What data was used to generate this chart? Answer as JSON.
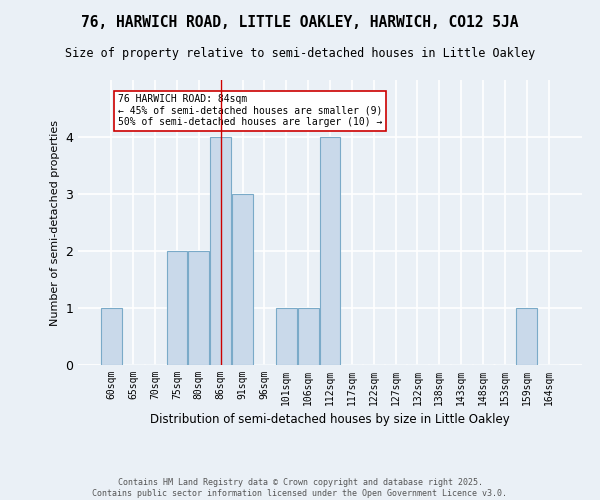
{
  "title": "76, HARWICH ROAD, LITTLE OAKLEY, HARWICH, CO12 5JA",
  "subtitle": "Size of property relative to semi-detached houses in Little Oakley",
  "xlabel": "Distribution of semi-detached houses by size in Little Oakley",
  "ylabel": "Number of semi-detached properties",
  "categories": [
    "60sqm",
    "65sqm",
    "70sqm",
    "75sqm",
    "80sqm",
    "86sqm",
    "91sqm",
    "96sqm",
    "101sqm",
    "106sqm",
    "112sqm",
    "117sqm",
    "122sqm",
    "127sqm",
    "132sqm",
    "138sqm",
    "143sqm",
    "148sqm",
    "153sqm",
    "159sqm",
    "164sqm"
  ],
  "values": [
    1,
    0,
    0,
    2,
    2,
    4,
    3,
    0,
    1,
    1,
    4,
    0,
    0,
    0,
    0,
    0,
    0,
    0,
    0,
    1,
    0
  ],
  "bar_color": "#c9d9ea",
  "bar_edge_color": "#7aaac8",
  "vline_x": 5,
  "vline_color": "#cc0000",
  "annotation_text": "76 HARWICH ROAD: 84sqm\n← 45% of semi-detached houses are smaller (9)\n50% of semi-detached houses are larger (10) →",
  "annotation_box_color": "white",
  "annotation_box_edge_color": "#cc0000",
  "ylim": [
    0,
    5
  ],
  "yticks": [
    0,
    1,
    2,
    3,
    4
  ],
  "footer": "Contains HM Land Registry data © Crown copyright and database right 2025.\nContains public sector information licensed under the Open Government Licence v3.0.",
  "background_color": "#eaf0f6",
  "grid_color": "white"
}
